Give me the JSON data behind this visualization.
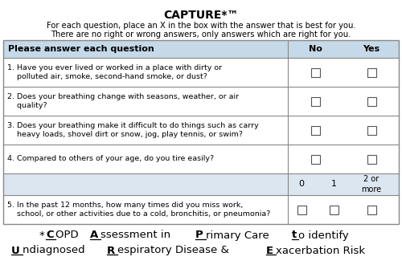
{
  "title": "CAPTURE*™",
  "subtitle_line1": "For each question, place an X in the box with the answer that is best for you.",
  "subtitle_line2": "There are no right or wrong answers, only answers which are right for you.",
  "header_col1": "Please answer each question",
  "header_col2": "No",
  "header_col3": "Yes",
  "header_bg": "#c5d9e8",
  "score_bg": "#dce6f1",
  "border_color": "#888888",
  "questions": [
    "1. Have you ever lived or worked in a place with dirty or\n    polluted air, smoke, second-hand smoke, or dust?",
    "2. Does your breathing change with seasons, weather, or air\n    quality?",
    "3. Does your breathing make it difficult to do things such as carry\n    heavy loads, shovel dirt or snow, jog, play tennis, or swim?",
    "4. Compared to others of your age, do you tire easily?"
  ],
  "question5": "5. In the past 12 months, how many times did you miss work,\n    school, or other activities due to a cold, bronchitis, or pneumonia?",
  "fig_width": 5.0,
  "fig_height": 3.4,
  "dpi": 100
}
